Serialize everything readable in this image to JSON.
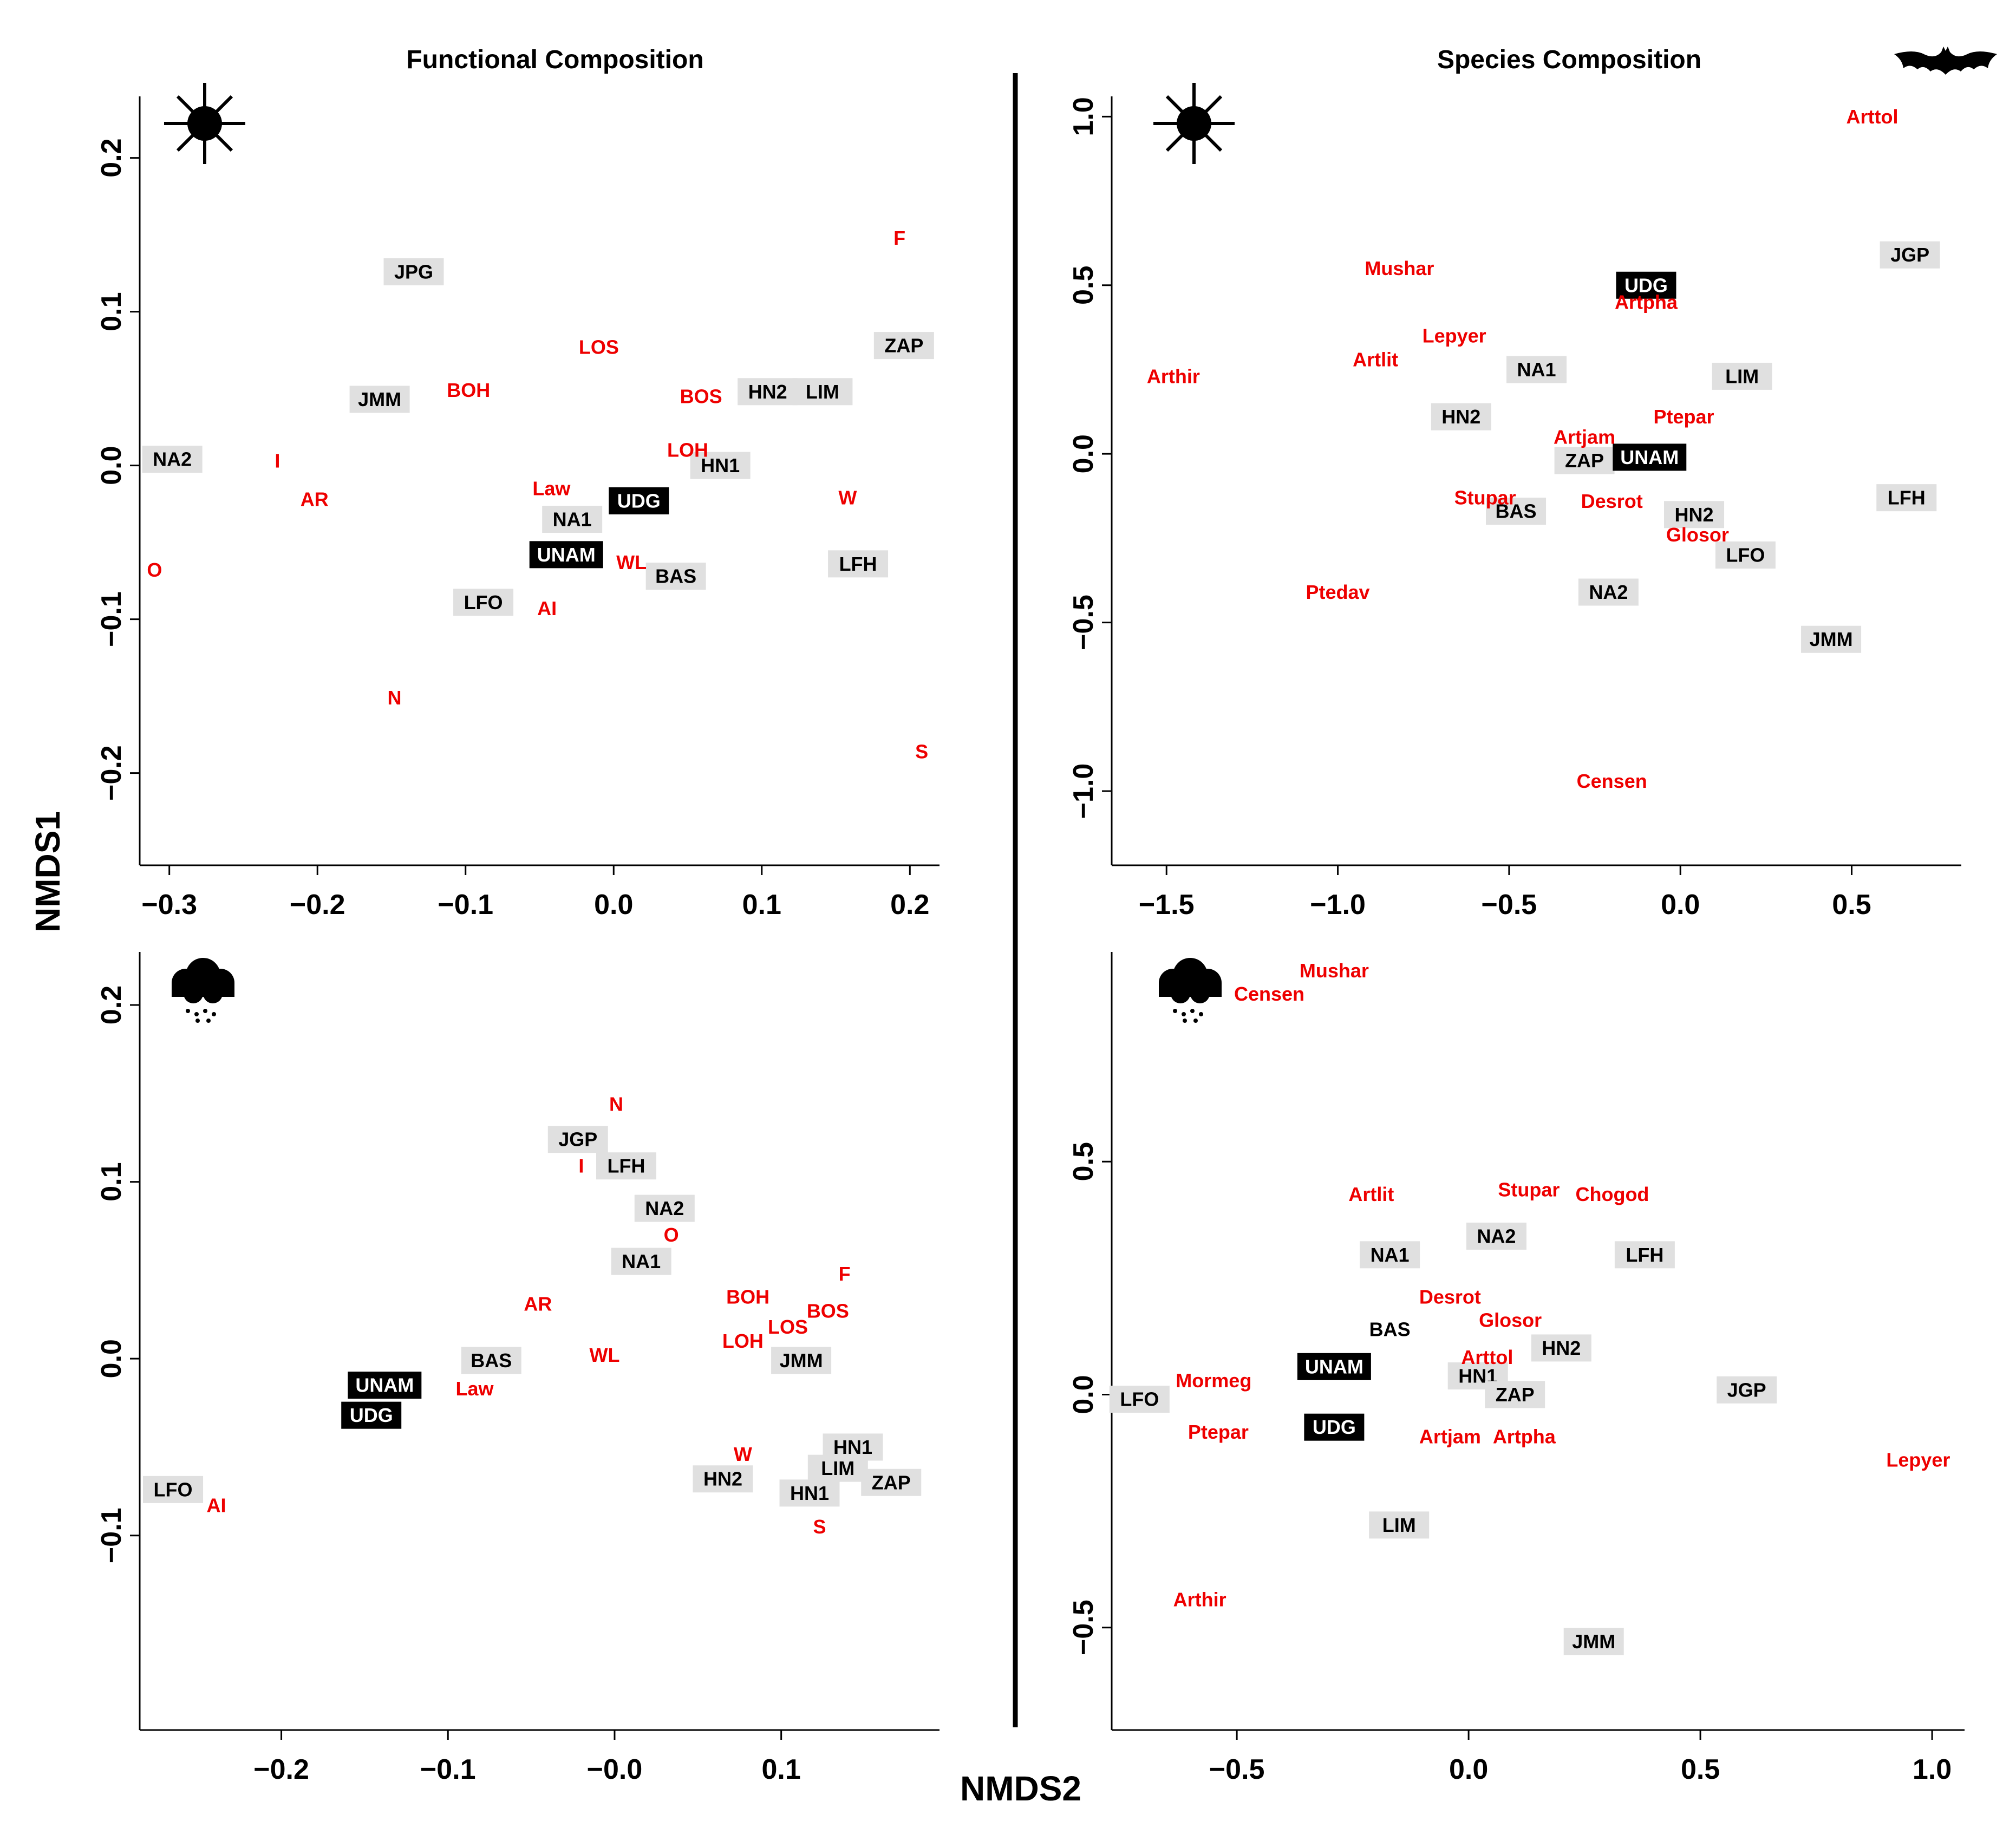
{
  "figure": {
    "xlabel": "NMDS2",
    "ylabel": "NMDS1"
  },
  "colors": {
    "site_box": "#e0e0e0",
    "site_box_highlight": "#000000",
    "variable_text": "#ee0000",
    "site_text": "#000000"
  },
  "icons": {
    "dry_season": "sun-icon",
    "wet_season": "rain-cloud-icon",
    "species_panel": "bat-icon"
  },
  "chart_data": [
    {
      "type": "scatter",
      "title": "Functional Composition",
      "season": "dry",
      "xlim": [
        -0.32,
        0.22
      ],
      "ylim": [
        -0.26,
        0.24
      ],
      "xticks": [
        -0.3,
        -0.2,
        -0.1,
        0.0,
        0.1,
        0.2
      ],
      "xticklabels": [
        "−0.3",
        "−0.2",
        "−0.1",
        "0.0",
        "0.1",
        "0.2"
      ],
      "yticks": [
        -0.2,
        -0.1,
        0.0,
        0.1,
        0.2
      ],
      "yticklabels": [
        "−0.2",
        "−0.1",
        "0.0",
        "0.1",
        "0.2"
      ],
      "sites": [
        {
          "label": "JPG",
          "x": -0.135,
          "y": 0.126
        },
        {
          "label": "JMM",
          "x": -0.158,
          "y": 0.043
        },
        {
          "label": "NA2",
          "x": -0.298,
          "y": 0.004
        },
        {
          "label": "UDG",
          "x": 0.017,
          "y": -0.023,
          "highlight": true
        },
        {
          "label": "NA1",
          "x": -0.028,
          "y": -0.035
        },
        {
          "label": "UNAM",
          "x": -0.032,
          "y": -0.058,
          "highlight": true
        },
        {
          "label": "LFO",
          "x": -0.088,
          "y": -0.089
        },
        {
          "label": "BAS",
          "x": 0.042,
          "y": -0.072
        },
        {
          "label": "HN1",
          "x": 0.072,
          "y": 0.0
        },
        {
          "label": "HN2",
          "x": 0.104,
          "y": 0.048
        },
        {
          "label": "LIM",
          "x": 0.141,
          "y": 0.048
        },
        {
          "label": "ZAP",
          "x": 0.196,
          "y": 0.078
        },
        {
          "label": "LFH",
          "x": 0.165,
          "y": -0.064
        }
      ],
      "variables": [
        {
          "label": "F",
          "x": 0.193,
          "y": 0.148
        },
        {
          "label": "LOS",
          "x": -0.01,
          "y": 0.077
        },
        {
          "label": "BOH",
          "x": -0.098,
          "y": 0.049
        },
        {
          "label": "BOS",
          "x": 0.059,
          "y": 0.045
        },
        {
          "label": "I",
          "x": -0.227,
          "y": 0.003
        },
        {
          "label": "LOH",
          "x": 0.05,
          "y": 0.01
        },
        {
          "label": "AR",
          "x": -0.202,
          "y": -0.022
        },
        {
          "label": "Law",
          "x": -0.042,
          "y": -0.015
        },
        {
          "label": "W",
          "x": 0.158,
          "y": -0.021
        },
        {
          "label": "O",
          "x": -0.31,
          "y": -0.068
        },
        {
          "label": "WL",
          "x": 0.012,
          "y": -0.063
        },
        {
          "label": "AI",
          "x": -0.045,
          "y": -0.093
        },
        {
          "label": "N",
          "x": -0.148,
          "y": -0.151
        },
        {
          "label": "S",
          "x": 0.208,
          "y": -0.186
        }
      ]
    },
    {
      "type": "scatter",
      "title": "Species Composition",
      "season": "dry",
      "xlim": [
        -1.66,
        0.82
      ],
      "ylim": [
        -1.22,
        1.06
      ],
      "xticks": [
        -1.5,
        -1.0,
        -0.5,
        0.0,
        0.5
      ],
      "xticklabels": [
        "−1.5",
        "−1.0",
        "−0.5",
        "0.0",
        "0.5"
      ],
      "yticks": [
        -1.0,
        -0.5,
        0.0,
        0.5,
        1.0
      ],
      "yticklabels": [
        "−1.0",
        "−0.5",
        "0.0",
        "0.5",
        "1.0"
      ],
      "sites": [
        {
          "label": "JGP",
          "x": 0.67,
          "y": 0.59
        },
        {
          "label": "UDG",
          "x": -0.1,
          "y": 0.5,
          "highlight": true
        },
        {
          "label": "NA1",
          "x": -0.42,
          "y": 0.25
        },
        {
          "label": "LIM",
          "x": 0.18,
          "y": 0.23
        },
        {
          "label": "HN2",
          "x": -0.64,
          "y": 0.11
        },
        {
          "label": "ZAP",
          "x": -0.28,
          "y": -0.02
        },
        {
          "label": "UNAM",
          "x": -0.09,
          "y": -0.01,
          "highlight": true
        },
        {
          "label": "BAS",
          "x": -0.48,
          "y": -0.17
        },
        {
          "label": "HN2",
          "x": 0.04,
          "y": -0.18
        },
        {
          "label": "LFH",
          "x": 0.66,
          "y": -0.13
        },
        {
          "label": "LFO",
          "x": 0.19,
          "y": -0.3
        },
        {
          "label": "NA2",
          "x": -0.21,
          "y": -0.41
        },
        {
          "label": "JMM",
          "x": 0.44,
          "y": -0.55
        }
      ],
      "variables": [
        {
          "label": "Arttol",
          "x": 0.56,
          "y": 1.0
        },
        {
          "label": "Mushar",
          "x": -0.82,
          "y": 0.55
        },
        {
          "label": "Artpha",
          "x": -0.1,
          "y": 0.45
        },
        {
          "label": "Lepyer",
          "x": -0.66,
          "y": 0.35
        },
        {
          "label": "Artlit",
          "x": -0.89,
          "y": 0.28
        },
        {
          "label": "Arthir",
          "x": -1.48,
          "y": 0.23
        },
        {
          "label": "Ptepar",
          "x": 0.01,
          "y": 0.11
        },
        {
          "label": "Artjam",
          "x": -0.28,
          "y": 0.05
        },
        {
          "label": "Stupar",
          "x": -0.57,
          "y": -0.13
        },
        {
          "label": "Desrot",
          "x": -0.2,
          "y": -0.14
        },
        {
          "label": "Glosor",
          "x": 0.05,
          "y": -0.24
        },
        {
          "label": "Ptedav",
          "x": -1.0,
          "y": -0.41
        },
        {
          "label": "Censen",
          "x": -0.2,
          "y": -0.97
        }
      ]
    },
    {
      "type": "scatter",
      "title": "",
      "season": "wet",
      "xlim": [
        -0.285,
        0.195
      ],
      "ylim": [
        -0.21,
        0.23
      ],
      "xticks": [
        -0.2,
        -0.1,
        0.0,
        0.1
      ],
      "xticklabels": [
        "−0.2",
        "−0.1",
        "−0.0",
        "0.1"
      ],
      "yticks": [
        -0.1,
        0.0,
        0.1,
        0.2
      ],
      "yticklabels": [
        "−0.1",
        "0.0",
        "0.1",
        "0.2"
      ],
      "sites": [
        {
          "label": "JGP",
          "x": -0.022,
          "y": 0.124
        },
        {
          "label": "LFH",
          "x": 0.007,
          "y": 0.109
        },
        {
          "label": "NA2",
          "x": 0.03,
          "y": 0.085
        },
        {
          "label": "NA1",
          "x": 0.016,
          "y": 0.055
        },
        {
          "label": "BAS",
          "x": -0.074,
          "y": -0.001
        },
        {
          "label": "JMM",
          "x": 0.112,
          "y": -0.001
        },
        {
          "label": "UNAM",
          "x": -0.138,
          "y": -0.015,
          "highlight": true
        },
        {
          "label": "UDG",
          "x": -0.146,
          "y": -0.032,
          "highlight": true
        },
        {
          "label": "HN1",
          "x": 0.143,
          "y": -0.05
        },
        {
          "label": "LIM",
          "x": 0.134,
          "y": -0.062
        },
        {
          "label": "HN2",
          "x": 0.065,
          "y": -0.068
        },
        {
          "label": "ZAP",
          "x": 0.166,
          "y": -0.07
        },
        {
          "label": "HN1",
          "x": 0.117,
          "y": -0.076
        },
        {
          "label": "LFO",
          "x": -0.265,
          "y": -0.074
        }
      ],
      "variables": [
        {
          "label": "N",
          "x": 0.001,
          "y": 0.144
        },
        {
          "label": "I",
          "x": -0.02,
          "y": 0.109
        },
        {
          "label": "O",
          "x": 0.034,
          "y": 0.07
        },
        {
          "label": "F",
          "x": 0.138,
          "y": 0.048
        },
        {
          "label": "BOH",
          "x": 0.08,
          "y": 0.035
        },
        {
          "label": "AR",
          "x": -0.046,
          "y": 0.031
        },
        {
          "label": "BOS",
          "x": 0.128,
          "y": 0.027
        },
        {
          "label": "LOS",
          "x": 0.104,
          "y": 0.018
        },
        {
          "label": "LOH",
          "x": 0.077,
          "y": 0.01
        },
        {
          "label": "WL",
          "x": -0.006,
          "y": 0.002
        },
        {
          "label": "Law",
          "x": -0.084,
          "y": -0.017
        },
        {
          "label": "W",
          "x": 0.077,
          "y": -0.054
        },
        {
          "label": "S",
          "x": 0.123,
          "y": -0.095
        },
        {
          "label": "AI",
          "x": -0.239,
          "y": -0.083
        }
      ]
    },
    {
      "type": "scatter",
      "title": "",
      "season": "wet",
      "xlim": [
        -0.77,
        1.07
      ],
      "ylim": [
        -0.72,
        0.95
      ],
      "xticks": [
        -0.5,
        0.0,
        0.5,
        1.0
      ],
      "xticklabels": [
        "−0.5",
        "0.0",
        "0.5",
        "1.0"
      ],
      "yticks": [
        -0.5,
        0.0,
        0.5
      ],
      "yticklabels": [
        "−0.5",
        "0.0",
        "0.5"
      ],
      "sites": [
        {
          "label": "NA2",
          "x": 0.06,
          "y": 0.34
        },
        {
          "label": "NA1",
          "x": -0.17,
          "y": 0.3
        },
        {
          "label": "LFH",
          "x": 0.38,
          "y": 0.3
        },
        {
          "label": "BAS",
          "x": -0.17,
          "y": 0.14,
          "nobox": true
        },
        {
          "label": "HN2",
          "x": 0.2,
          "y": 0.1
        },
        {
          "label": "UNAM",
          "x": -0.29,
          "y": 0.06,
          "highlight": true
        },
        {
          "label": "HN1",
          "x": 0.02,
          "y": 0.04
        },
        {
          "label": "ZAP",
          "x": 0.1,
          "y": 0.0
        },
        {
          "label": "JGP",
          "x": 0.6,
          "y": 0.01
        },
        {
          "label": "LFO",
          "x": -0.71,
          "y": -0.01
        },
        {
          "label": "UDG",
          "x": -0.29,
          "y": -0.07,
          "highlight": true
        },
        {
          "label": "LIM",
          "x": -0.15,
          "y": -0.28
        },
        {
          "label": "JMM",
          "x": 0.27,
          "y": -0.53
        }
      ],
      "variables": [
        {
          "label": "Mushar",
          "x": -0.29,
          "y": 0.91
        },
        {
          "label": "Censen",
          "x": -0.43,
          "y": 0.86
        },
        {
          "label": "Artlit",
          "x": -0.21,
          "y": 0.43
        },
        {
          "label": "Stupar",
          "x": 0.13,
          "y": 0.44
        },
        {
          "label": "Chogod",
          "x": 0.31,
          "y": 0.43
        },
        {
          "label": "Desrot",
          "x": -0.04,
          "y": 0.21
        },
        {
          "label": "Glosor",
          "x": 0.09,
          "y": 0.16
        },
        {
          "label": "Arttol",
          "x": 0.04,
          "y": 0.08
        },
        {
          "label": "Mormeg",
          "x": -0.55,
          "y": 0.03
        },
        {
          "label": "Ptepar",
          "x": -0.54,
          "y": -0.08
        },
        {
          "label": "Artjam",
          "x": -0.04,
          "y": -0.09
        },
        {
          "label": "Artpha",
          "x": 0.12,
          "y": -0.09
        },
        {
          "label": "Lepyer",
          "x": 0.97,
          "y": -0.14
        },
        {
          "label": "Arthir",
          "x": -0.58,
          "y": -0.44
        }
      ]
    }
  ]
}
